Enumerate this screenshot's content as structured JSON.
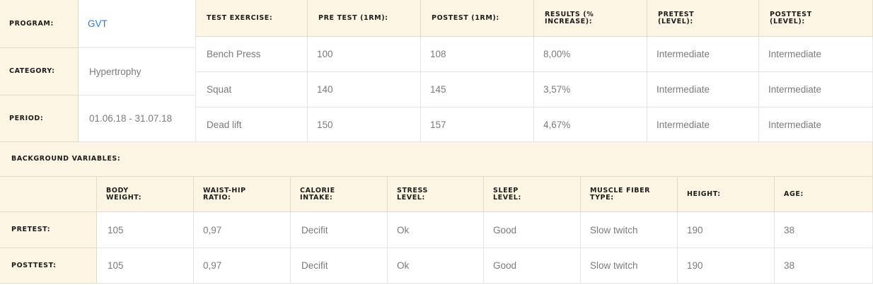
{
  "program": {
    "rows": [
      {
        "label": "PROGRAM:",
        "value": "GVT"
      },
      {
        "label": "CATEGORY:",
        "value": "Hypertrophy"
      },
      {
        "label": "PERIOD:",
        "value": "01.06.18 - 31.07.18"
      }
    ]
  },
  "tests": {
    "headers": [
      "TEST EXERCISE:",
      "PRE TEST (1RM):",
      "POSTEST (1RM):",
      "RESULTS (% INCREASE):",
      "PRETEST (LEVEL):",
      "POSTTEST (LEVEL):"
    ],
    "rows": [
      [
        "Bench Press",
        "100",
        "108",
        "8,00%",
        "Intermediate",
        "Intermediate"
      ],
      [
        "Squat",
        "140",
        "145",
        "3,57%",
        "Intermediate",
        "Intermediate"
      ],
      [
        "Dead lift",
        "150",
        "157",
        "4,67%",
        "Intermediate",
        "Intermediate"
      ]
    ]
  },
  "background": {
    "title": "BACKGROUND VARIABLES:",
    "headers": [
      "BODY WEIGHT:",
      "WAIST-HIP RATIO:",
      "CALORIE INTAKE:",
      "STRESS LEVEL:",
      "SLEEP LEVEL:",
      "MUSCLE FIBER TYPE:",
      "HEIGHT:",
      "AGE:"
    ],
    "rows": [
      {
        "label": "PRETEST:",
        "values": [
          "105",
          "0,97",
          "Decifit",
          "Ok",
          "Good",
          "Slow twitch",
          "190",
          "38"
        ]
      },
      {
        "label": "POSTTEST:",
        "values": [
          "105",
          "0,97",
          "Decifit",
          "Ok",
          "Good",
          "Slow twitch",
          "190",
          "38"
        ]
      }
    ]
  }
}
